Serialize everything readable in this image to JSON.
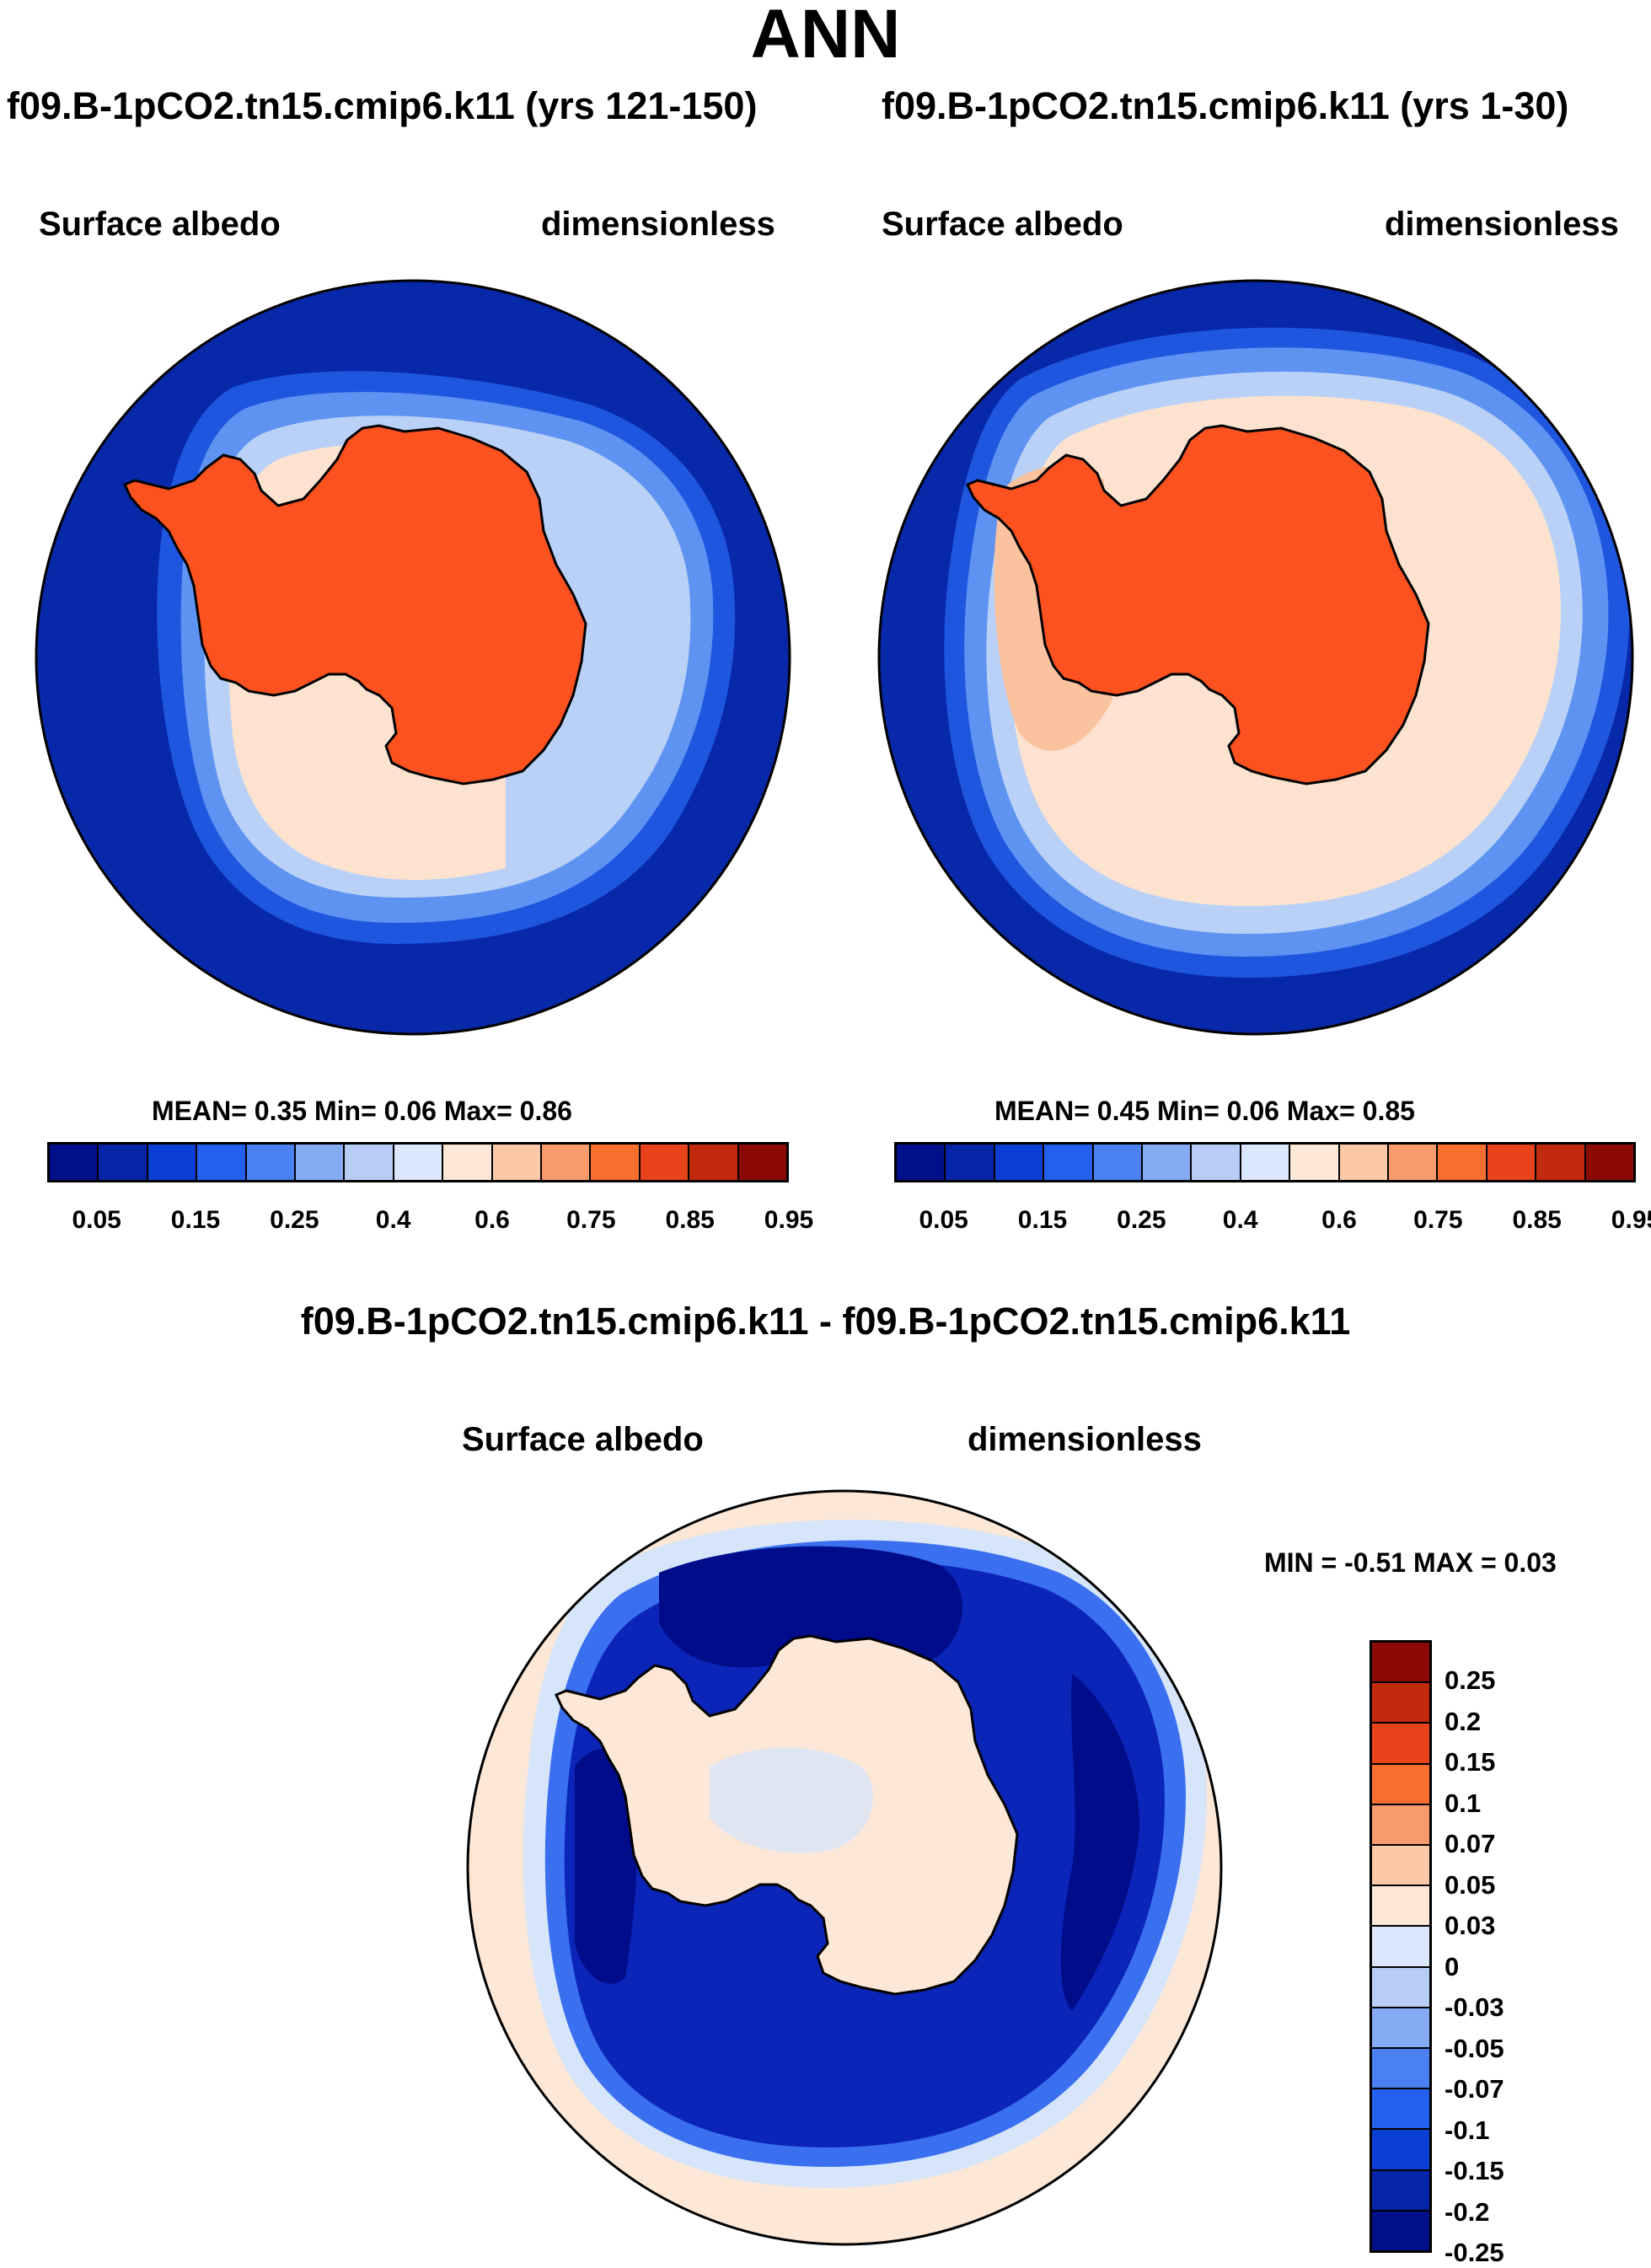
{
  "title": "ANN",
  "panels": [
    {
      "case": "f09.B-1pCO2.tn15.cmip6.k11 (yrs 121-150)",
      "variable": "Surface albedo",
      "units": "dimensionless",
      "stats_label": "MEAN=   0.35  Min=    0.06  Max=    0.86",
      "mean": 0.35,
      "min": 0.06,
      "max": 0.86
    },
    {
      "case": "f09.B-1pCO2.tn15.cmip6.k11 (yrs 1-30)",
      "variable": "Surface albedo",
      "units": "dimensionless",
      "stats_label": "MEAN=   0.45  Min=    0.06  Max=    0.85",
      "mean": 0.45,
      "min": 0.06,
      "max": 0.85
    }
  ],
  "diff_panel": {
    "title": "f09.B-1pCO2.tn15.cmip6.k11 - f09.B-1pCO2.tn15.cmip6.k11",
    "variable": "Surface albedo",
    "units": "dimensionless",
    "minmax_label": "MIN =  -0.51  MAX =    0.03",
    "min": -0.51,
    "max": 0.03
  },
  "colorbar": {
    "tick_labels": [
      "0.05",
      "0.15",
      "0.25",
      "0.4",
      "0.6",
      "0.75",
      "0.85",
      "0.95"
    ],
    "colors": [
      "#000f8a",
      "#0624a8",
      "#0b3fd4",
      "#2460ee",
      "#4b80f0",
      "#86abf5",
      "#b7cdf6",
      "#dbe8fb",
      "#fde7d6",
      "#fbc8a8",
      "#f79b6c",
      "#f7702f",
      "#e8431a",
      "#c22a0d",
      "#8c0a05"
    ]
  },
  "diff_colorbar": {
    "tick_labels": [
      "0.25",
      "0.2",
      "0.15",
      "0.1",
      "0.07",
      "0.05",
      "0.03",
      "0",
      "-0.03",
      "-0.05",
      "-0.07",
      "-0.1",
      "-0.15",
      "-0.2",
      "-0.25"
    ],
    "colors": [
      "#8c0a05",
      "#c22a0d",
      "#e8431a",
      "#f7702f",
      "#f79b6c",
      "#fbc8a8",
      "#fde7d6",
      "#dbe8fb",
      "#b7cdf6",
      "#86abf5",
      "#4b80f0",
      "#2460ee",
      "#0b3fd4",
      "#0624a8",
      "#000f8a"
    ]
  },
  "map_colors": {
    "ocean_low": "#0728a8",
    "ring1": "#1f56e0",
    "ring2": "#5f93f1",
    "ring3": "#b9d1f7",
    "seaice": "#fde3cf",
    "seaice_hi": "#fbc2a0",
    "land": "#fc521f",
    "diff_neutral": "#fde7d6",
    "diff_pale": "#d6e5fa",
    "diff_mid": "#3a6ff0",
    "diff_strong": "#0a25b8",
    "diff_deep": "#000c8a"
  }
}
